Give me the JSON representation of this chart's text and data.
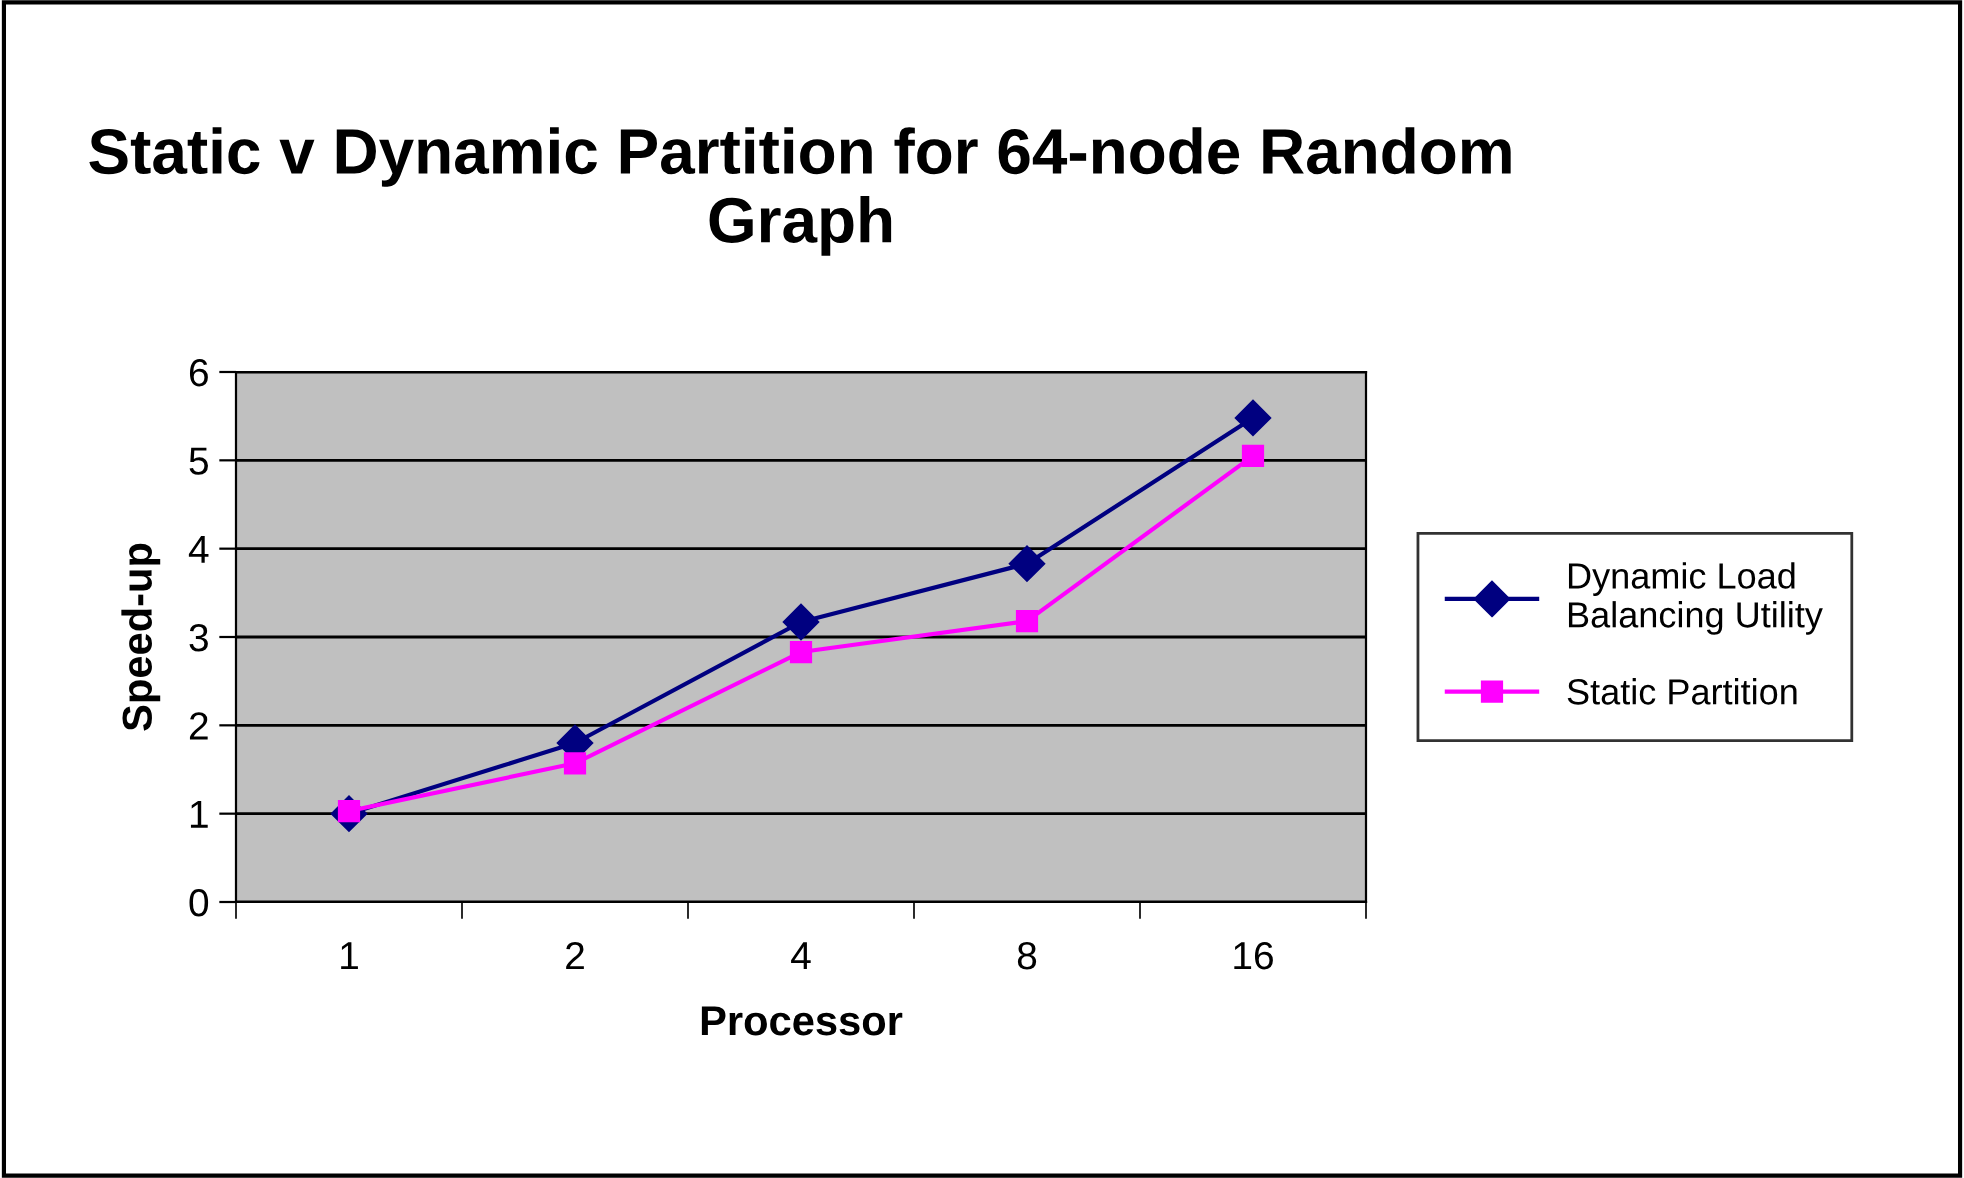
{
  "chart_data": {
    "type": "line",
    "title": "Static v Dynamic Partition for 64-node Random Graph",
    "xlabel": "Processor",
    "ylabel": "Speed-up",
    "categories": [
      "1",
      "2",
      "4",
      "8",
      "16"
    ],
    "series": [
      {
        "name": "Dynamic Load Balancing Utility",
        "color": "#000080",
        "marker": "diamond",
        "values": [
          1.0,
          1.8,
          3.17,
          3.83,
          5.48
        ]
      },
      {
        "name": "Static Partition",
        "color": "#ff00ff",
        "marker": "square",
        "values": [
          1.03,
          1.57,
          2.83,
          3.18,
          5.05
        ]
      }
    ],
    "ylim": [
      0,
      6
    ],
    "yticks": [
      0,
      1,
      2,
      3,
      4,
      5,
      6
    ],
    "grid": "y",
    "legend": "right"
  }
}
